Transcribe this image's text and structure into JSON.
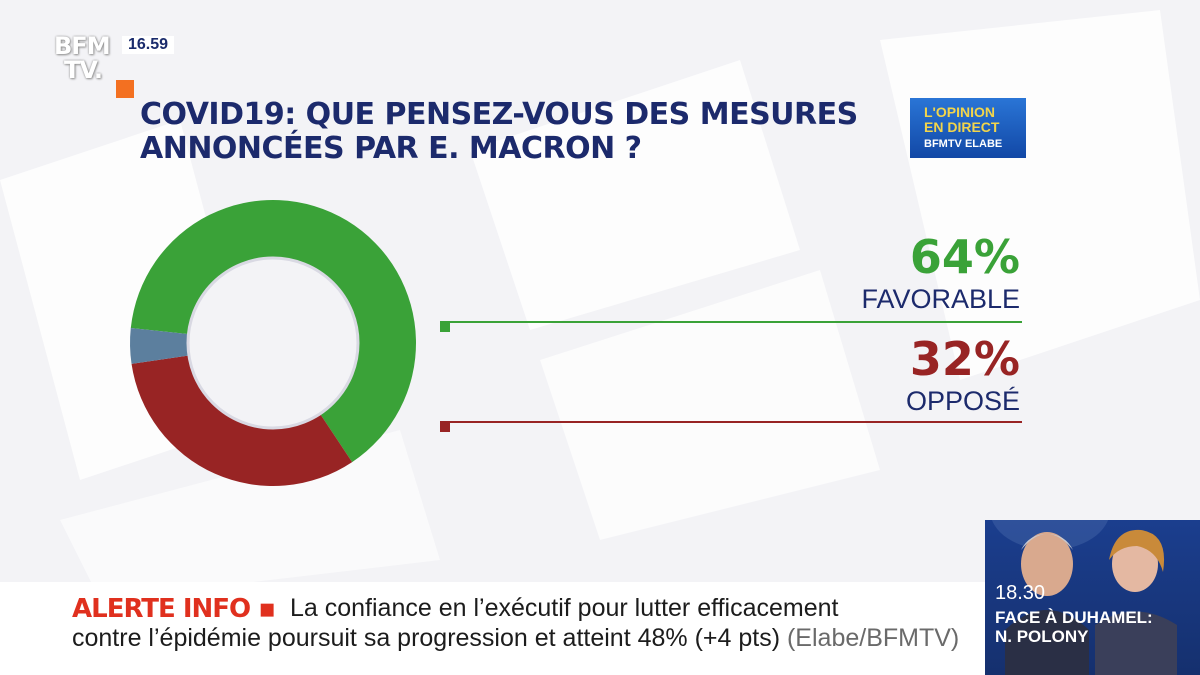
{
  "channel": {
    "logo_line1": "BFM",
    "logo_line2": "TV.",
    "time": "16.59"
  },
  "title_lines": [
    "COVID19: QUE PENSEZ-VOUS DES MESURES",
    "ANNONCÉES PAR E. MACRON ?"
  ],
  "badge": {
    "line1": "L'OPINION",
    "line2": "EN DIRECT",
    "line3": "BFMTV ELABE"
  },
  "colors": {
    "favorable": "#3aa238",
    "oppose": "#982424",
    "other": "#5c7f9e",
    "title": "#1c2a6c",
    "alert": "#e0301e"
  },
  "chart_data": {
    "type": "pie",
    "title": "COVID19: QUE PENSEZ-VOUS DES MESURES ANNONCÉES PAR E. MACRON ?",
    "donut": true,
    "series": [
      {
        "label": "FAVORABLE",
        "display": "64%",
        "value": 64,
        "color": "#3aa238"
      },
      {
        "label": "OPPOSÉ",
        "display": "32%",
        "value": 32,
        "color": "#982424"
      },
      {
        "label": "",
        "display": "",
        "value": 4,
        "color": "#5c7f9e"
      }
    ]
  },
  "ticker": {
    "label": "ALERTE INFO ▪",
    "line1": "La confiance en l’exécutif pour lutter efficacement",
    "line2": "contre l’épidémie poursuit sa progression et atteint 48% (+4 pts)",
    "source": "(Elabe/BFMTV)"
  },
  "program": {
    "time": "18.30",
    "title": "FACE À DUHAMEL:",
    "guest": "N. POLONY"
  }
}
